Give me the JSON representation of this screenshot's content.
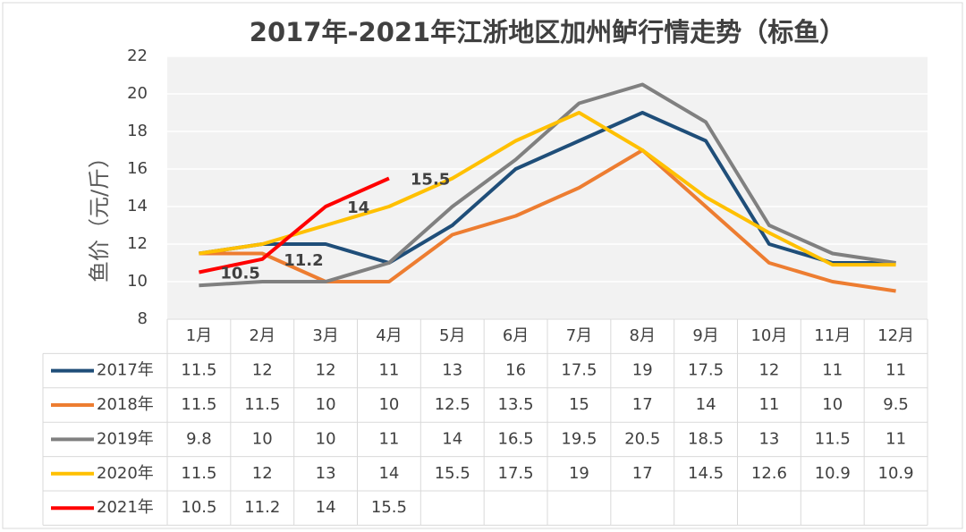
{
  "chart_data": {
    "type": "line",
    "title": "2017年-2021年江浙地区加州鲈行情走势（标鱼）",
    "y_label": "鱼价（元/斤）",
    "categories": [
      "1月",
      "2月",
      "3月",
      "4月",
      "5月",
      "6月",
      "7月",
      "8月",
      "9月",
      "10月",
      "11月",
      "12月"
    ],
    "series": [
      {
        "name": "2017年",
        "color": "#1f4e79",
        "values": [
          11.5,
          12,
          12,
          11,
          13,
          16,
          17.5,
          19,
          17.5,
          12,
          11,
          11
        ]
      },
      {
        "name": "2018年",
        "color": "#ed7d31",
        "values": [
          11.5,
          11.5,
          10,
          10,
          12.5,
          13.5,
          15,
          17,
          14,
          11,
          10,
          9.5
        ]
      },
      {
        "name": "2019年",
        "color": "#808080",
        "values": [
          9.8,
          10,
          10,
          11,
          14,
          16.5,
          19.5,
          20.5,
          18.5,
          13,
          11.5,
          11
        ]
      },
      {
        "name": "2020年",
        "color": "#ffc000",
        "values": [
          11.5,
          12,
          13,
          14,
          15.5,
          17.5,
          19,
          17,
          14.5,
          12.6,
          10.9,
          10.9
        ]
      },
      {
        "name": "2021年",
        "color": "#ff0000",
        "show_labels": true,
        "values": [
          10.5,
          11.2,
          14,
          15.5,
          null,
          null,
          null,
          null,
          null,
          null,
          null,
          null
        ]
      }
    ],
    "ylim": [
      8,
      22
    ],
    "yticks": [
      8,
      10,
      12,
      14,
      16,
      18,
      20,
      22
    ],
    "grid": true
  }
}
